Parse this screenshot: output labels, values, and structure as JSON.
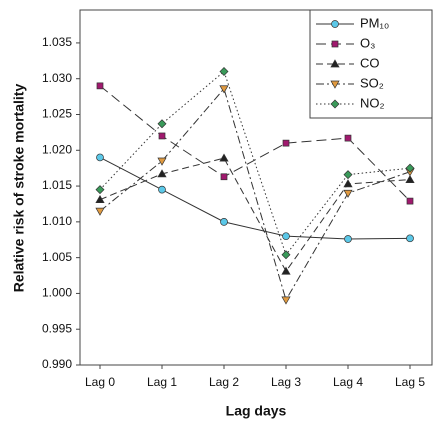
{
  "chart_data": {
    "type": "line",
    "x_label": "Lag days",
    "y_label": "Relative risk of stroke mortality",
    "categories": [
      "Lag 0",
      "Lag 1",
      "Lag 2",
      "Lag 3",
      "Lag 4",
      "Lag 5"
    ],
    "ylim": [
      0.99,
      1.0396
    ],
    "yticks": [
      {
        "value": 0.99,
        "label": "0.990"
      },
      0.995,
      {
        "value": 1.0,
        "label": "1.000"
      },
      1.005,
      {
        "value": 1.01,
        "label": "1.010"
      },
      1.015,
      {
        "value": 1.02,
        "label": "1.020"
      },
      1.025,
      {
        "value": 1.03,
        "label": "1.030"
      },
      1.035
    ],
    "legend": "upper right",
    "series": [
      {
        "name": "PM₁₀",
        "color": "#5bc8e8",
        "marker": "circle",
        "line_style": "solid",
        "values": [
          1.019,
          1.0145,
          1.01,
          1.008,
          1.0076,
          1.0077
        ]
      },
      {
        "name": "O₃",
        "color": "#a0196e",
        "marker": "square",
        "line_style": "longdash",
        "values": [
          1.029,
          1.022,
          1.0163,
          1.021,
          1.0217,
          1.0129
        ]
      },
      {
        "name": "CO",
        "color": "#222222",
        "marker": "triangle-up",
        "line_style": "dashed",
        "values": [
          1.0131,
          1.0167,
          1.0189,
          1.0031,
          1.0153,
          1.0159
        ]
      },
      {
        "name": "SO₂",
        "color": "#e09a40",
        "marker": "triangle-down",
        "line_style": "dashdot",
        "values": [
          1.0115,
          1.0185,
          1.0286,
          0.9991,
          1.014,
          1.017
        ]
      },
      {
        "name": "NO₂",
        "color": "#3a9a5a",
        "marker": "diamond",
        "line_style": "dotted",
        "values": [
          1.0145,
          1.0237,
          1.031,
          1.0054,
          1.0166,
          1.0175
        ]
      }
    ]
  }
}
